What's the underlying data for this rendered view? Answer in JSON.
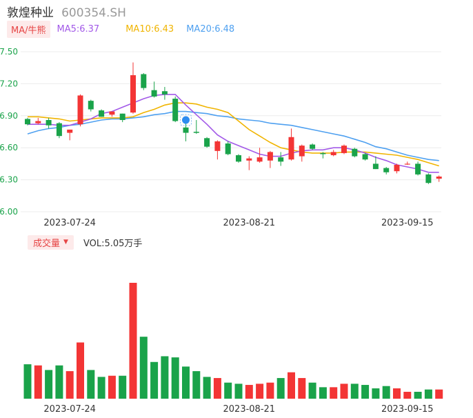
{
  "header": {
    "name": "敦煌种业",
    "code": "600354.SH"
  },
  "ma_bar": {
    "tag": "MA/牛熊",
    "ma5": "MA5:6.37",
    "ma10": "MA10:6.43",
    "ma20": "MA20:6.48"
  },
  "volume_bar": {
    "tag": "成交量",
    "caret": "▼",
    "vol": "VOL:5.05万手"
  },
  "colors": {
    "up": "#f33535",
    "down": "#1aa34a",
    "ma5": "#a259e8",
    "ma10": "#f0b400",
    "ma20": "#4ea0f0"
  },
  "chart_data": {
    "type": "candlestick",
    "price_axis": {
      "ylim": [
        6.0,
        7.5
      ],
      "ticks": [
        "7.50",
        "7.20",
        "6.90",
        "6.60",
        "6.30",
        "6.00"
      ]
    },
    "x_ticks": [
      {
        "index": 4,
        "label": "2023-07-24"
      },
      {
        "index": 21,
        "label": "2023-08-21"
      },
      {
        "index": 36,
        "label": "2023-09-15"
      }
    ],
    "candles": [
      {
        "o": 6.87,
        "h": 6.88,
        "l": 6.81,
        "c": 6.82
      },
      {
        "o": 6.83,
        "h": 6.88,
        "l": 6.82,
        "c": 6.85
      },
      {
        "o": 6.86,
        "h": 6.88,
        "l": 6.78,
        "c": 6.81
      },
      {
        "o": 6.83,
        "h": 6.84,
        "l": 6.69,
        "c": 6.71
      },
      {
        "o": 6.74,
        "h": 6.77,
        "l": 6.67,
        "c": 6.77
      },
      {
        "o": 6.82,
        "h": 7.1,
        "l": 6.8,
        "c": 7.09
      },
      {
        "o": 7.04,
        "h": 7.05,
        "l": 6.94,
        "c": 6.96
      },
      {
        "o": 6.95,
        "h": 6.96,
        "l": 6.89,
        "c": 6.89
      },
      {
        "o": 6.91,
        "h": 6.94,
        "l": 6.89,
        "c": 6.94
      },
      {
        "o": 6.92,
        "h": 6.92,
        "l": 6.84,
        "c": 6.86
      },
      {
        "o": 6.93,
        "h": 7.4,
        "l": 6.92,
        "c": 7.28
      },
      {
        "o": 7.29,
        "h": 7.3,
        "l": 7.14,
        "c": 7.16
      },
      {
        "o": 7.14,
        "h": 7.22,
        "l": 7.07,
        "c": 7.08
      },
      {
        "o": 7.13,
        "h": 7.17,
        "l": 7.05,
        "c": 7.1
      },
      {
        "o": 7.06,
        "h": 7.08,
        "l": 6.84,
        "c": 6.85
      },
      {
        "o": 6.79,
        "h": 6.88,
        "l": 6.66,
        "c": 6.74
      },
      {
        "o": 6.75,
        "h": 6.86,
        "l": 6.73,
        "c": 6.74
      },
      {
        "o": 6.69,
        "h": 6.7,
        "l": 6.6,
        "c": 6.61
      },
      {
        "o": 6.57,
        "h": 6.67,
        "l": 6.49,
        "c": 6.66
      },
      {
        "o": 6.64,
        "h": 6.66,
        "l": 6.53,
        "c": 6.54
      },
      {
        "o": 6.53,
        "h": 6.54,
        "l": 6.46,
        "c": 6.47
      },
      {
        "o": 6.48,
        "h": 6.52,
        "l": 6.39,
        "c": 6.5
      },
      {
        "o": 6.47,
        "h": 6.6,
        "l": 6.46,
        "c": 6.51
      },
      {
        "o": 6.48,
        "h": 6.57,
        "l": 6.41,
        "c": 6.56
      },
      {
        "o": 6.51,
        "h": 6.56,
        "l": 6.43,
        "c": 6.47
      },
      {
        "o": 6.49,
        "h": 6.78,
        "l": 6.48,
        "c": 6.7
      },
      {
        "o": 6.52,
        "h": 6.63,
        "l": 6.47,
        "c": 6.62
      },
      {
        "o": 6.63,
        "h": 6.64,
        "l": 6.58,
        "c": 6.59
      },
      {
        "o": 6.55,
        "h": 6.56,
        "l": 6.5,
        "c": 6.54
      },
      {
        "o": 6.53,
        "h": 6.58,
        "l": 6.52,
        "c": 6.56
      },
      {
        "o": 6.55,
        "h": 6.63,
        "l": 6.54,
        "c": 6.62
      },
      {
        "o": 6.59,
        "h": 6.6,
        "l": 6.51,
        "c": 6.52
      },
      {
        "o": 6.54,
        "h": 6.55,
        "l": 6.48,
        "c": 6.49
      },
      {
        "o": 6.45,
        "h": 6.52,
        "l": 6.4,
        "c": 6.4
      },
      {
        "o": 6.41,
        "h": 6.42,
        "l": 6.35,
        "c": 6.37
      },
      {
        "o": 6.38,
        "h": 6.45,
        "l": 6.36,
        "c": 6.44
      },
      {
        "o": 6.45,
        "h": 6.47,
        "l": 6.44,
        "c": 6.45
      },
      {
        "o": 6.45,
        "h": 6.47,
        "l": 6.34,
        "c": 6.35
      },
      {
        "o": 6.35,
        "h": 6.36,
        "l": 6.26,
        "c": 6.27
      },
      {
        "o": 6.31,
        "h": 6.34,
        "l": 6.28,
        "c": 6.33
      }
    ],
    "ma5": [
      6.82,
      6.82,
      6.82,
      6.81,
      6.81,
      6.84,
      6.87,
      6.92,
      6.94,
      6.98,
      7.02,
      7.06,
      7.09,
      7.1,
      7.1,
      7.0,
      6.91,
      6.82,
      6.72,
      6.66,
      6.62,
      6.58,
      6.54,
      6.52,
      6.52,
      6.55,
      6.57,
      6.58,
      6.58,
      6.6,
      6.6,
      6.58,
      6.55,
      6.51,
      6.48,
      6.44,
      6.42,
      6.4,
      6.37,
      6.37
    ],
    "ma10": [
      6.89,
      6.89,
      6.88,
      6.87,
      6.85,
      6.86,
      6.87,
      6.88,
      6.88,
      6.88,
      6.89,
      6.93,
      6.96,
      7.0,
      7.02,
      7.02,
      7.01,
      6.98,
      6.96,
      6.93,
      6.85,
      6.77,
      6.71,
      6.65,
      6.6,
      6.58,
      6.56,
      6.55,
      6.55,
      6.55,
      6.56,
      6.56,
      6.56,
      6.55,
      6.54,
      6.53,
      6.51,
      6.49,
      6.46,
      6.43
    ],
    "ma20": [
      6.73,
      6.76,
      6.78,
      6.79,
      6.81,
      6.82,
      6.84,
      6.86,
      6.87,
      6.87,
      6.88,
      6.89,
      6.91,
      6.92,
      6.94,
      6.94,
      6.93,
      6.92,
      6.9,
      6.89,
      6.87,
      6.86,
      6.85,
      6.83,
      6.82,
      6.81,
      6.79,
      6.77,
      6.75,
      6.73,
      6.71,
      6.68,
      6.65,
      6.61,
      6.59,
      6.56,
      6.53,
      6.51,
      6.49,
      6.48
    ],
    "volumes": [
      3.0,
      2.9,
      2.5,
      2.9,
      2.4,
      4.9,
      2.5,
      1.9,
      2.0,
      2.0,
      10.1,
      5.4,
      3.2,
      3.7,
      3.6,
      2.8,
      2.4,
      1.9,
      1.8,
      1.4,
      1.3,
      1.2,
      1.3,
      1.4,
      1.8,
      2.3,
      1.8,
      1.4,
      1.0,
      1.0,
      1.3,
      1.3,
      1.2,
      0.9,
      1.1,
      0.9,
      0.6,
      0.6,
      0.8,
      0.8
    ]
  }
}
